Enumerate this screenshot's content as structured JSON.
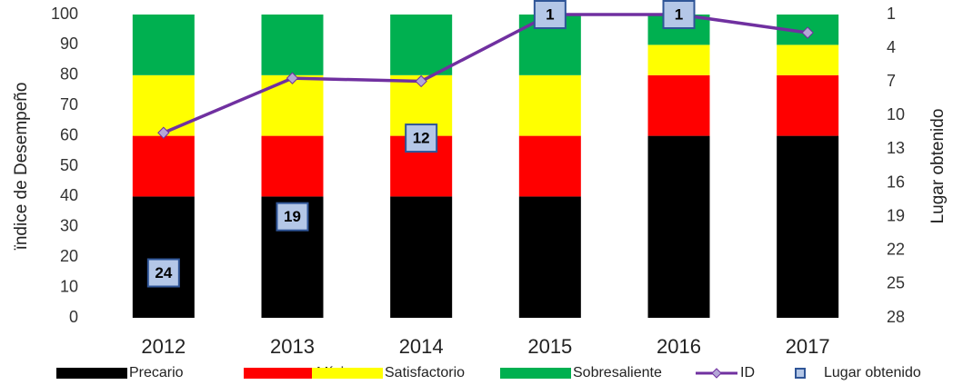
{
  "chart_data": {
    "type": "bar",
    "stacked": true,
    "y_label": "ïndice de Desempeño",
    "y2_label": "Lugar obtenido",
    "categories": [
      "2012",
      "2013",
      "2014",
      "2015",
      "2016",
      "2017"
    ],
    "series": [
      {
        "name": "Precario",
        "color": "#000000",
        "values": [
          40,
          40,
          40,
          40,
          60,
          60
        ]
      },
      {
        "name": "Mínimo",
        "color": "#ff0000",
        "values": [
          20,
          20,
          20,
          20,
          20,
          20
        ]
      },
      {
        "name": "Satisfactorio",
        "color": "#ffff00",
        "values": [
          20,
          20,
          20,
          20,
          10,
          10
        ]
      },
      {
        "name": "Sobresaliente",
        "color": "#00b050",
        "values": [
          20,
          20,
          20,
          20,
          10,
          10
        ]
      },
      {
        "name": "ID",
        "type": "line",
        "color": "#7030a0",
        "marker_color": "#b4a7d6",
        "values": [
          61,
          79,
          78,
          100,
          100,
          94
        ]
      },
      {
        "name": "Lugar obtenido",
        "type": "scatter",
        "axis": "y2",
        "color": "#b4c7e7",
        "edge_color": "#2f5597",
        "values": [
          24,
          19,
          12,
          1,
          1,
          null
        ]
      }
    ],
    "ylim": [
      0,
      100
    ],
    "yticks": [
      0,
      10,
      20,
      30,
      40,
      50,
      60,
      70,
      80,
      90,
      100
    ],
    "y2lim": [
      28,
      1
    ],
    "y2ticks": [
      28,
      25,
      22,
      19,
      16,
      13,
      10,
      7,
      4,
      1
    ],
    "grid": false,
    "legend": "bottom"
  }
}
